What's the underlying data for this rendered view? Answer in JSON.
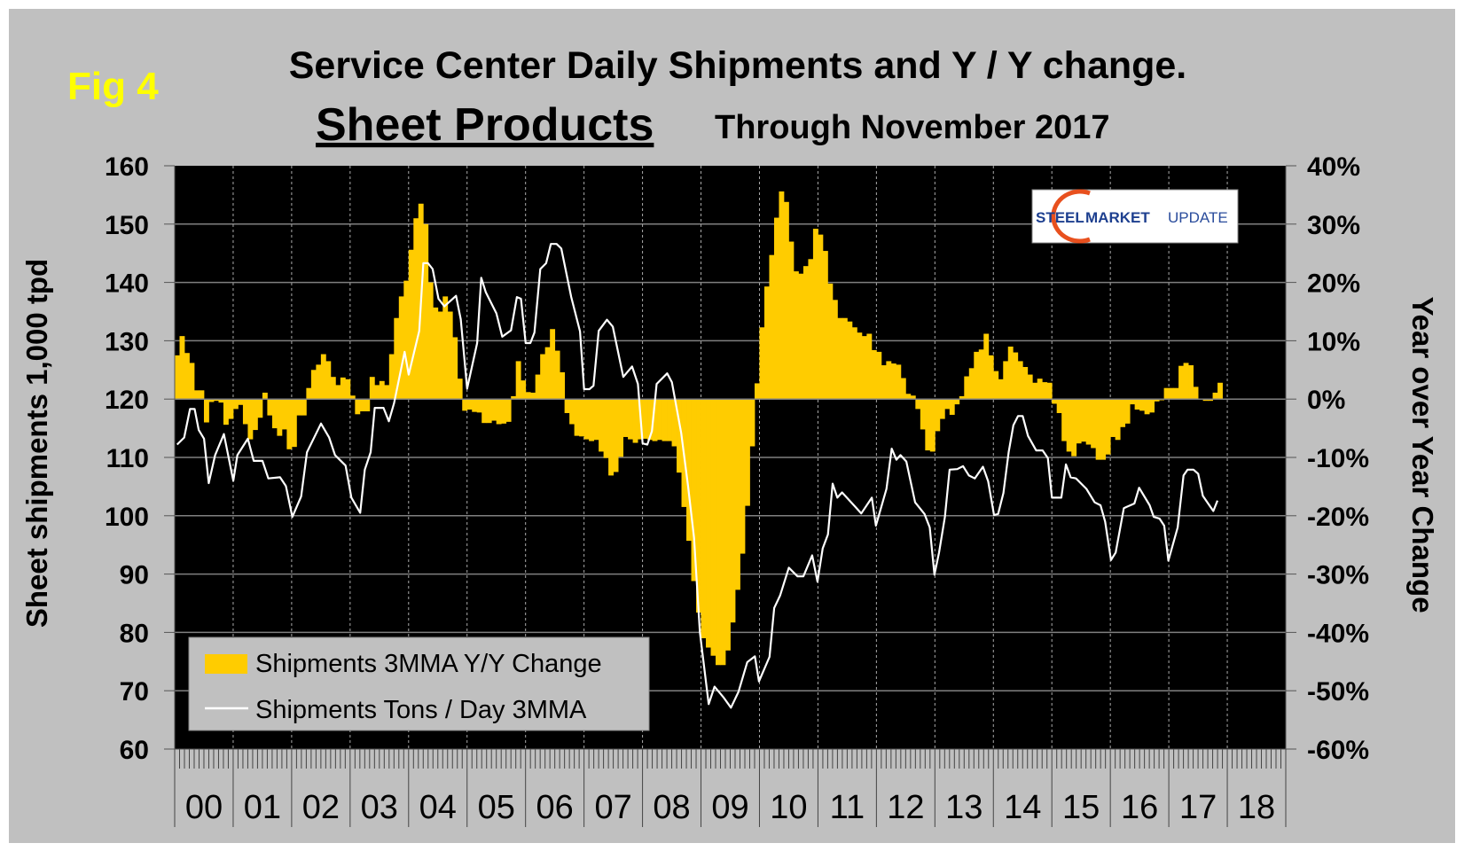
{
  "fig_label": "Fig 4",
  "title": "Service Center Daily Shipments and Y / Y change.",
  "subtitle_main": "Sheet Products",
  "subtitle_rest": "Through November 2017",
  "logo": {
    "word1": "STEEL",
    "word2": "MARKET",
    "word3": "UPDATE"
  },
  "colors": {
    "background": "#c0c0c0",
    "plot": "#000000",
    "bars": "#ffcc00",
    "line": "#ffffff",
    "fig_label": "#ffff00"
  },
  "chart_data": {
    "type": "bar+line",
    "title": "Service Center Daily Shipments and Y / Y change. Sheet Products Through November 2017",
    "ylabel": "Sheet shipments 1,000 tpd",
    "y2label": "Year over Year Change",
    "ylim": [
      60,
      160
    ],
    "y2lim": [
      -60,
      40
    ],
    "yticks": [
      "160",
      "150",
      "140",
      "130",
      "120",
      "110",
      "100",
      "90",
      "80",
      "70",
      "60"
    ],
    "y2ticks": [
      "40%",
      "30%",
      "20%",
      "10%",
      "0%",
      "-10%",
      "-20%",
      "-30%",
      "-40%",
      "-50%",
      "-60%"
    ],
    "xlim": [
      2000,
      2019
    ],
    "xticks": [
      "00",
      "01",
      "02",
      "03",
      "04",
      "05",
      "06",
      "07",
      "08",
      "09",
      "10",
      "11",
      "12",
      "13",
      "14",
      "15",
      "16",
      "17",
      "18"
    ],
    "grid": true,
    "legend_position": "bottom-left",
    "series": [
      {
        "name": "Shipments 3MMA Y/Y Change",
        "type": "bar",
        "axis": "right",
        "start": "2000-01",
        "frequency": "monthly",
        "unit": "%",
        "values": [
          7.5,
          10.8,
          7.9,
          6.2,
          1.5,
          1.5,
          -4.0,
          -0.5,
          -0.3,
          -0.6,
          -4.4,
          -3.4,
          -1.7,
          -1.0,
          -4.3,
          -6.9,
          -5.3,
          -3.2,
          1.1,
          -2.8,
          -5.0,
          -6.3,
          -5.2,
          -8.6,
          -8.2,
          -2.8,
          -2.8,
          1.9,
          5.0,
          5.9,
          7.7,
          6.5,
          3.8,
          2.4,
          3.7,
          3.4,
          0.6,
          -2.6,
          -2.1,
          -2.1,
          3.8,
          2.4,
          3.1,
          2.4,
          7.7,
          13.9,
          17.6,
          20.3,
          25.6,
          31.0,
          33.5,
          30.0,
          20.0,
          15.7,
          15.0,
          17.6,
          15.0,
          10.6,
          3.5,
          -2.0,
          -1.8,
          -2.2,
          -2.3,
          -4.1,
          -4.1,
          -3.7,
          -4.3,
          -4.2,
          -3.9,
          0.5,
          6.5,
          3.2,
          1.2,
          1.1,
          4.2,
          7.7,
          8.9,
          12.0,
          8.3,
          4.6,
          -2.4,
          -4.3,
          -6.3,
          -6.4,
          -6.9,
          -7.2,
          -7.0,
          -9.0,
          -10.1,
          -13.1,
          -12.5,
          -9.9,
          -6.5,
          -6.9,
          -7.5,
          -6.9,
          -6.8,
          -7.0,
          -7.2,
          -7.0,
          -7.2,
          -7.2,
          -8.1,
          -12.6,
          -18.5,
          -24.3,
          -31.2,
          -36.6,
          -41.0,
          -42.6,
          -44.0,
          -45.6,
          -45.6,
          -43.1,
          -38.3,
          -32.7,
          -26.5,
          -18.3,
          -8.1,
          2.7,
          12.3,
          19.3,
          24.7,
          31.1,
          35.6,
          33.8,
          27.0,
          21.9,
          21.5,
          22.8,
          24.0,
          29.2,
          28.2,
          25.4,
          19.8,
          17.0,
          13.9,
          13.9,
          13.3,
          12.3,
          11.4,
          10.8,
          11.2,
          8.4,
          8.1,
          5.8,
          6.5,
          6.1,
          5.9,
          3.6,
          0.9,
          0.6,
          -1.7,
          -5.2,
          -8.8,
          -9.0,
          -5.5,
          -3.4,
          -1.7,
          -2.7,
          -0.9,
          0.5,
          3.9,
          5.3,
          8.1,
          8.5,
          11.2,
          7.5,
          4.8,
          3.4,
          6.5,
          9.0,
          8.0,
          6.5,
          5.5,
          4.2,
          2.8,
          3.5,
          2.9,
          2.8,
          -0.8,
          -2.4,
          -7.2,
          -9.0,
          -9.8,
          -7.6,
          -7.3,
          -7.8,
          -8.4,
          -10.4,
          -10.4,
          -9.5,
          -6.5,
          -7.0,
          -4.8,
          -4.2,
          -0.9,
          -1.8,
          -2.0,
          -2.6,
          -2.3,
          -0.4,
          -0.2,
          1.9,
          1.9,
          1.9,
          5.7,
          6.2,
          5.8,
          2.1,
          0.0,
          -0.3,
          -0.3,
          1.1,
          2.8
        ]
      },
      {
        "name": "Shipments Tons / Day 3MMA",
        "type": "line",
        "axis": "left",
        "unit": "1,000 tpd",
        "points": [
          [
            2000.0,
            112.2
          ],
          [
            2000.12,
            113.4
          ],
          [
            2000.22,
            118.3
          ],
          [
            2000.3,
            118.3
          ],
          [
            2000.37,
            114.7
          ],
          [
            2000.46,
            113.2
          ],
          [
            2000.54,
            105.6
          ],
          [
            2000.65,
            110.4
          ],
          [
            2000.8,
            114.0
          ],
          [
            2000.96,
            106.0
          ],
          [
            2001.03,
            110.4
          ],
          [
            2001.21,
            113.2
          ],
          [
            2001.31,
            109.4
          ],
          [
            2001.46,
            109.4
          ],
          [
            2001.56,
            106.4
          ],
          [
            2001.76,
            106.6
          ],
          [
            2001.86,
            105.1
          ],
          [
            2001.97,
            99.8
          ],
          [
            2002.12,
            103.3
          ],
          [
            2002.22,
            110.9
          ],
          [
            2002.46,
            115.8
          ],
          [
            2002.6,
            113.4
          ],
          [
            2002.7,
            110.4
          ],
          [
            2002.88,
            108.6
          ],
          [
            2002.98,
            103.1
          ],
          [
            2003.13,
            100.5
          ],
          [
            2003.21,
            107.9
          ],
          [
            2003.31,
            110.9
          ],
          [
            2003.38,
            118.5
          ],
          [
            2003.53,
            118.5
          ],
          [
            2003.62,
            116.2
          ],
          [
            2003.71,
            119.3
          ],
          [
            2003.89,
            128.1
          ],
          [
            2003.96,
            124.2
          ],
          [
            2004.14,
            131.7
          ],
          [
            2004.21,
            143.3
          ],
          [
            2004.29,
            143.3
          ],
          [
            2004.37,
            142.3
          ],
          [
            2004.47,
            137.2
          ],
          [
            2004.57,
            135.9
          ],
          [
            2004.77,
            137.7
          ],
          [
            2004.85,
            133.7
          ],
          [
            2004.96,
            121.8
          ],
          [
            2005.13,
            129.6
          ],
          [
            2005.2,
            140.8
          ],
          [
            2005.28,
            138.3
          ],
          [
            2005.46,
            134.7
          ],
          [
            2005.56,
            130.7
          ],
          [
            2005.71,
            131.8
          ],
          [
            2005.81,
            137.5
          ],
          [
            2005.88,
            137.2
          ],
          [
            2005.96,
            129.6
          ],
          [
            2006.04,
            129.6
          ],
          [
            2006.11,
            131.4
          ],
          [
            2006.21,
            142.3
          ],
          [
            2006.31,
            143.3
          ],
          [
            2006.39,
            146.6
          ],
          [
            2006.49,
            146.6
          ],
          [
            2006.57,
            145.8
          ],
          [
            2006.74,
            137.5
          ],
          [
            2006.89,
            131.6
          ],
          [
            2006.96,
            121.7
          ],
          [
            2007.05,
            121.7
          ],
          [
            2007.12,
            122.3
          ],
          [
            2007.21,
            131.7
          ],
          [
            2007.35,
            133.6
          ],
          [
            2007.45,
            132.4
          ],
          [
            2007.63,
            123.8
          ],
          [
            2007.78,
            125.6
          ],
          [
            2007.88,
            122.6
          ],
          [
            2007.96,
            112.4
          ],
          [
            2008.04,
            112.2
          ],
          [
            2008.12,
            114.5
          ],
          [
            2008.2,
            122.6
          ],
          [
            2008.38,
            124.4
          ],
          [
            2008.46,
            122.9
          ],
          [
            2008.62,
            114.2
          ],
          [
            2008.74,
            104.9
          ],
          [
            2008.84,
            96.2
          ],
          [
            2008.94,
            80.0
          ],
          [
            2009.09,
            67.7
          ],
          [
            2009.19,
            70.7
          ],
          [
            2009.34,
            68.9
          ],
          [
            2009.47,
            67.1
          ],
          [
            2009.6,
            69.8
          ],
          [
            2009.75,
            74.9
          ],
          [
            2009.88,
            75.9
          ],
          [
            2009.95,
            71.6
          ],
          [
            2010.13,
            75.8
          ],
          [
            2010.21,
            84.2
          ],
          [
            2010.31,
            86.3
          ],
          [
            2010.46,
            91.1
          ],
          [
            2010.61,
            89.6
          ],
          [
            2010.71,
            89.6
          ],
          [
            2010.86,
            93.2
          ],
          [
            2010.95,
            88.7
          ],
          [
            2011.04,
            94.4
          ],
          [
            2011.13,
            96.8
          ],
          [
            2011.21,
            105.5
          ],
          [
            2011.29,
            103.1
          ],
          [
            2011.37,
            104.0
          ],
          [
            2011.59,
            101.6
          ],
          [
            2011.7,
            100.4
          ],
          [
            2011.88,
            103.1
          ],
          [
            2011.95,
            98.3
          ],
          [
            2012.13,
            104.6
          ],
          [
            2012.22,
            111.5
          ],
          [
            2012.3,
            109.6
          ],
          [
            2012.37,
            110.4
          ],
          [
            2012.47,
            109.3
          ],
          [
            2012.62,
            102.3
          ],
          [
            2012.78,
            100.3
          ],
          [
            2012.87,
            98.0
          ],
          [
            2012.95,
            89.9
          ],
          [
            2013.03,
            93.7
          ],
          [
            2013.13,
            99.8
          ],
          [
            2013.21,
            107.9
          ],
          [
            2013.34,
            108.0
          ],
          [
            2013.44,
            108.5
          ],
          [
            2013.54,
            106.9
          ],
          [
            2013.64,
            106.4
          ],
          [
            2013.78,
            108.4
          ],
          [
            2013.87,
            105.9
          ],
          [
            2013.97,
            100.1
          ],
          [
            2014.04,
            100.3
          ],
          [
            2014.13,
            103.9
          ],
          [
            2014.22,
            110.9
          ],
          [
            2014.3,
            115.5
          ],
          [
            2014.38,
            117.1
          ],
          [
            2014.46,
            117.1
          ],
          [
            2014.55,
            113.7
          ],
          [
            2014.69,
            111.2
          ],
          [
            2014.8,
            111.2
          ],
          [
            2014.89,
            109.9
          ],
          [
            2014.96,
            103.1
          ],
          [
            2015.12,
            103.1
          ],
          [
            2015.2,
            108.8
          ],
          [
            2015.28,
            106.6
          ],
          [
            2015.37,
            106.4
          ],
          [
            2015.55,
            104.6
          ],
          [
            2015.69,
            102.3
          ],
          [
            2015.79,
            101.8
          ],
          [
            2015.87,
            99.0
          ],
          [
            2015.97,
            92.4
          ],
          [
            2016.05,
            93.7
          ],
          [
            2016.19,
            101.3
          ],
          [
            2016.37,
            102.1
          ],
          [
            2016.45,
            104.8
          ],
          [
            2016.63,
            101.8
          ],
          [
            2016.7,
            99.8
          ],
          [
            2016.8,
            99.5
          ],
          [
            2016.88,
            98.3
          ],
          [
            2016.95,
            92.3
          ],
          [
            2017.11,
            98.0
          ],
          [
            2017.21,
            106.9
          ],
          [
            2017.28,
            107.9
          ],
          [
            2017.38,
            107.9
          ],
          [
            2017.46,
            107.2
          ],
          [
            2017.54,
            103.4
          ],
          [
            2017.72,
            100.8
          ],
          [
            2017.79,
            102.6
          ]
        ]
      }
    ]
  }
}
